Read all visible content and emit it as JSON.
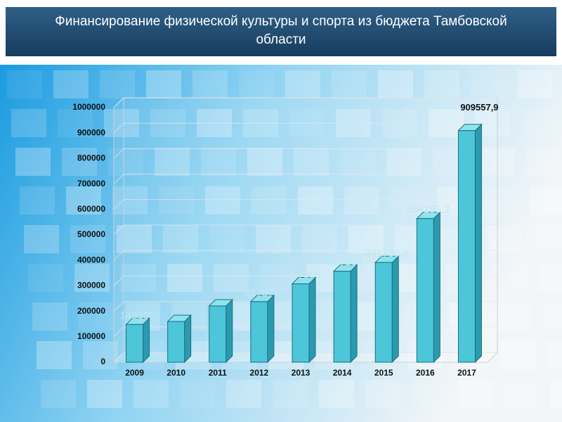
{
  "chart_data": {
    "type": "bar3d",
    "title": "Финансирование физической культуры и спорта из бюджета Тамбовской области",
    "categories": [
      "2009",
      "2010",
      "2011",
      "2012",
      "2013",
      "2014",
      "2015",
      "2016",
      "2017"
    ],
    "values": [
      148300,
      160000,
      221000,
      237873,
      307989,
      357368,
      391730.9,
      564195.2,
      909557.9
    ],
    "value_labels": [
      "148300",
      null,
      null,
      "237873",
      "307989",
      "357368",
      "391730,9",
      "564195,2",
      "909557,9"
    ],
    "color": "#4cc6d8",
    "ylim": [
      0,
      1000000
    ],
    "yticks": [
      0,
      100000,
      200000,
      300000,
      400000,
      500000,
      600000,
      700000,
      800000,
      900000,
      1000000
    ],
    "grid": true
  }
}
